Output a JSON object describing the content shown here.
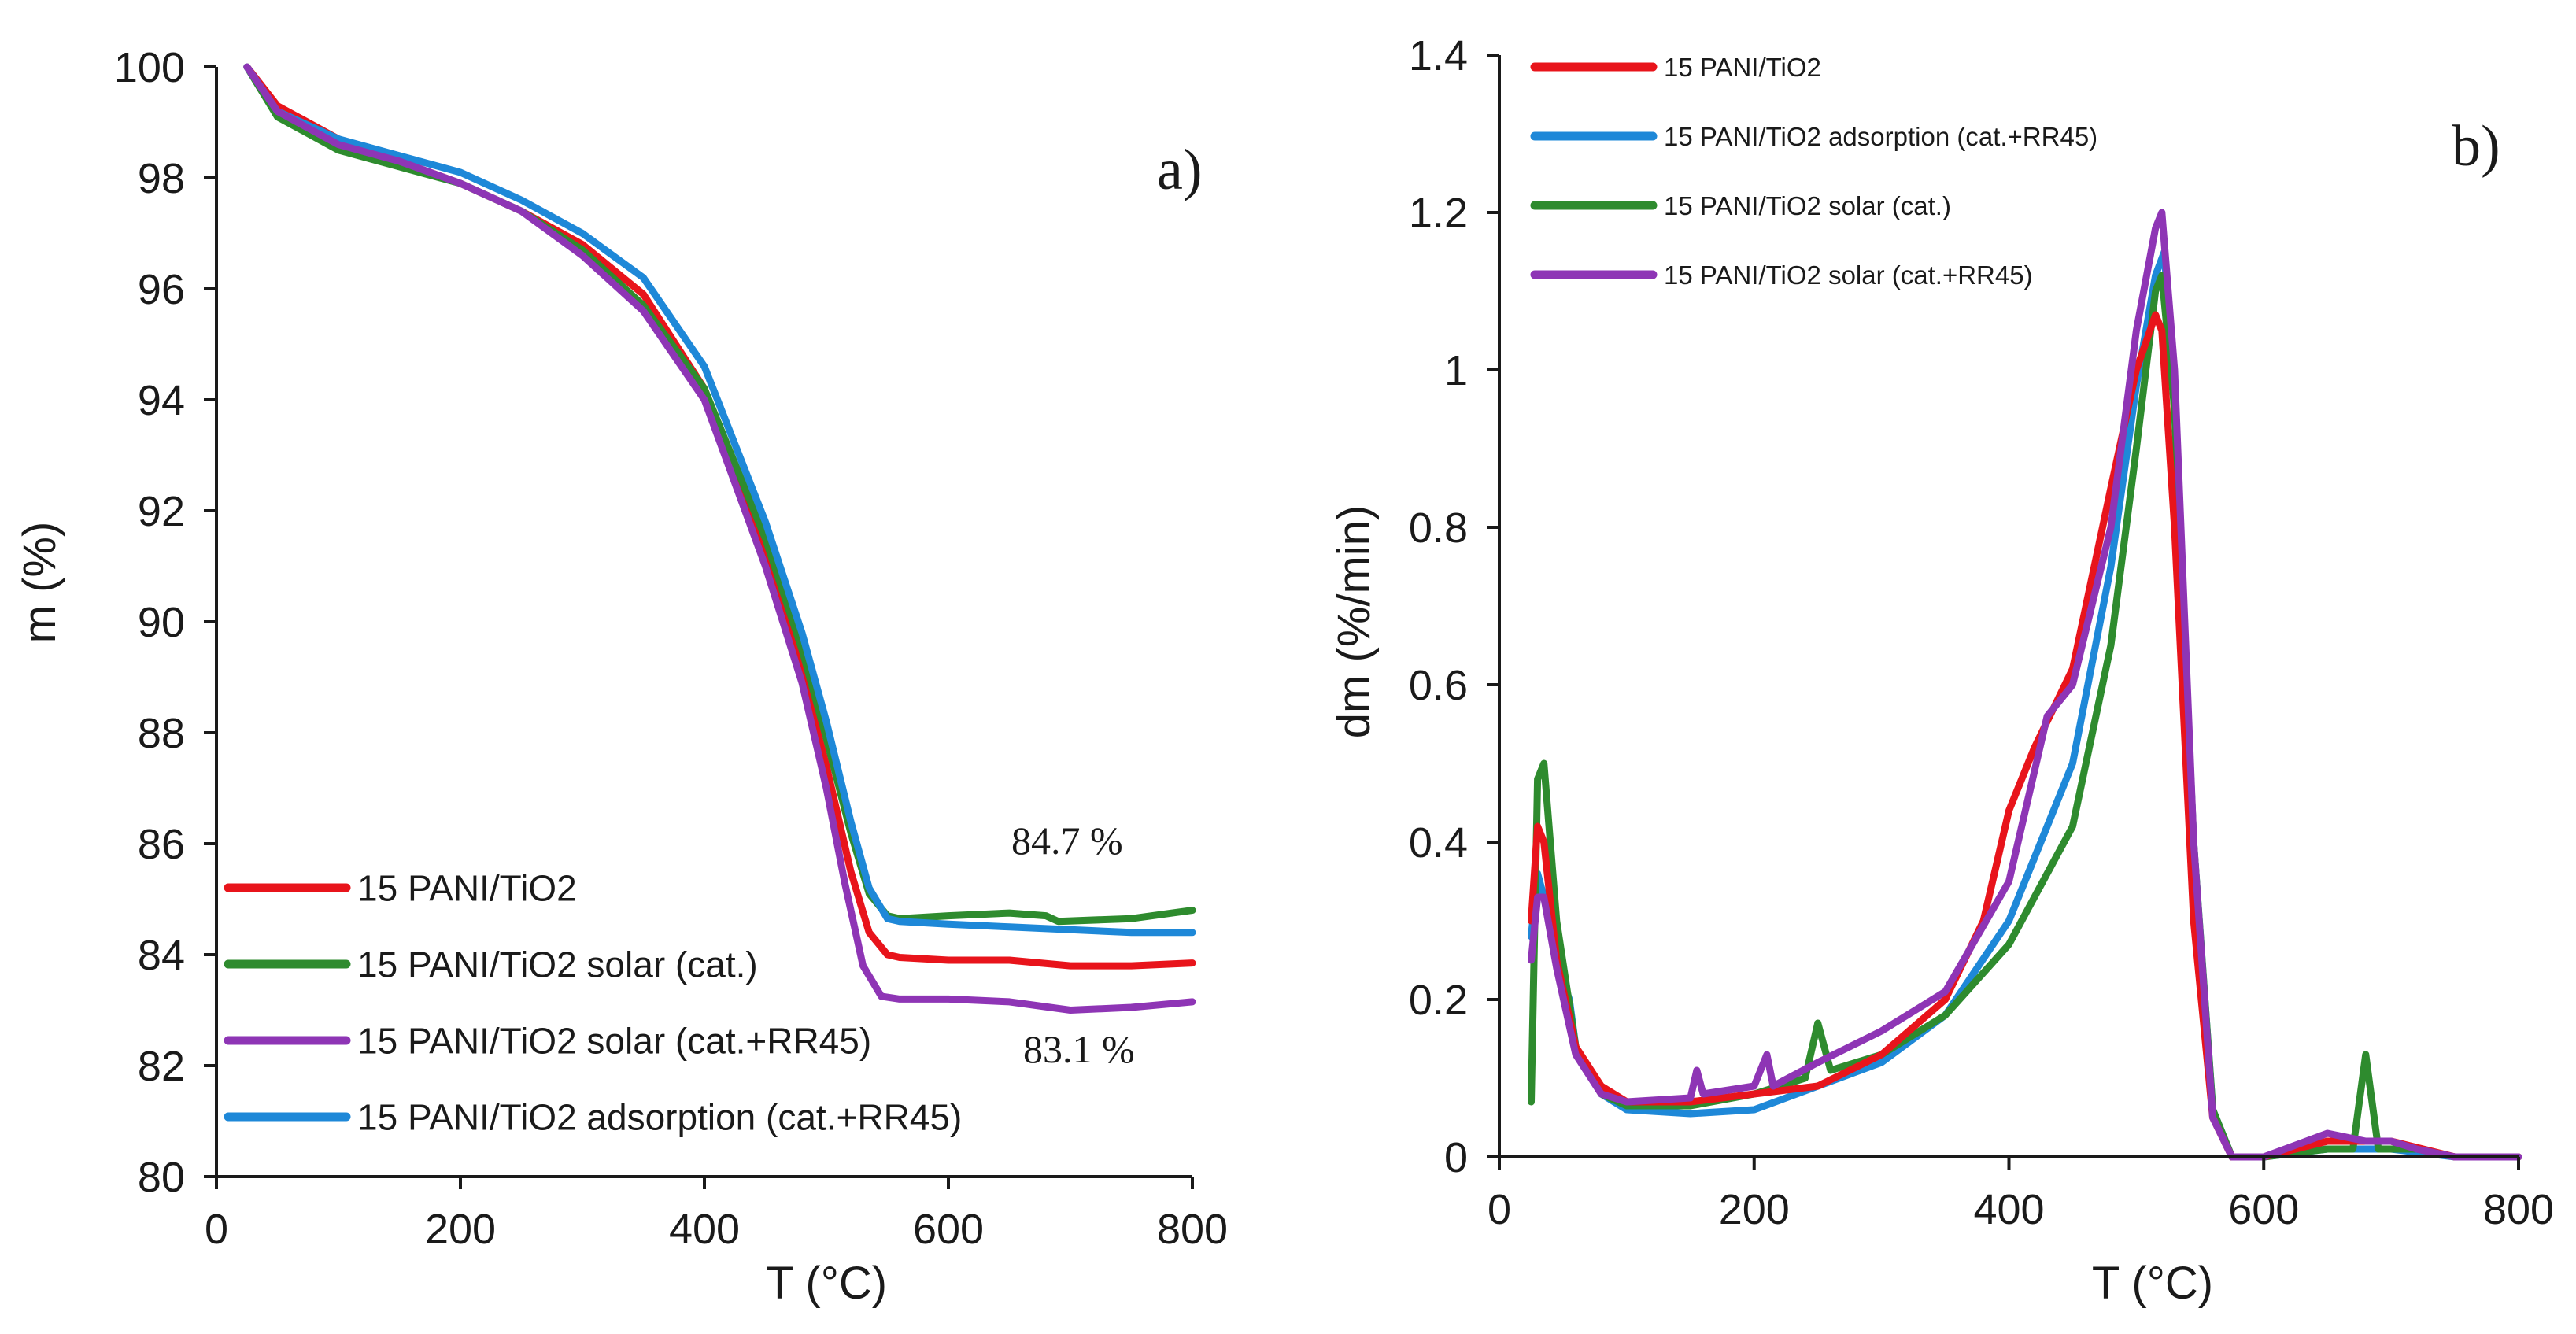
{
  "colors": {
    "red": "#e8141b",
    "green": "#2e8b2e",
    "purple": "#8e35b5",
    "blue": "#1e88d8",
    "axis": "#1a1a1a"
  },
  "chart_data": [
    {
      "type": "line",
      "panel_label": "a)",
      "xlabel": "T (°C)",
      "ylabel": "m (%)",
      "xlim": [
        0,
        800
      ],
      "ylim": [
        80,
        100
      ],
      "xticks": [
        "0",
        "200",
        "400",
        "600",
        "800"
      ],
      "yticks": [
        "80",
        "82",
        "84",
        "86",
        "88",
        "90",
        "92",
        "94",
        "96",
        "98",
        "100"
      ],
      "grid": false,
      "legend_position": "bottom-left",
      "annotations": [
        {
          "text": "84.7 %",
          "x": 680,
          "y": 85.9
        },
        {
          "text": "83.1 %",
          "x": 680,
          "y": 82.2
        }
      ],
      "series": [
        {
          "name": "15 PANI/TiO2",
          "color": "red",
          "x": [
            25,
            50,
            100,
            150,
            200,
            250,
            300,
            350,
            400,
            450,
            480,
            500,
            520,
            535,
            550,
            560,
            600,
            650,
            700,
            750,
            800
          ],
          "y": [
            100,
            99.3,
            98.7,
            98.3,
            97.9,
            97.4,
            96.8,
            95.9,
            94.2,
            91.2,
            89.1,
            87.4,
            85.5,
            84.4,
            84.0,
            83.95,
            83.9,
            83.9,
            83.8,
            83.8,
            83.85
          ]
        },
        {
          "name": "15 PANI/TiO2 solar (cat.)",
          "color": "green",
          "x": [
            25,
            50,
            100,
            150,
            200,
            250,
            300,
            350,
            400,
            450,
            480,
            500,
            520,
            535,
            550,
            560,
            600,
            650,
            680,
            690,
            750,
            800
          ],
          "y": [
            100,
            99.1,
            98.5,
            98.2,
            97.9,
            97.4,
            96.7,
            95.7,
            94.2,
            91.5,
            89.5,
            87.9,
            86.2,
            85.1,
            84.7,
            84.65,
            84.7,
            84.75,
            84.7,
            84.6,
            84.65,
            84.8
          ]
        },
        {
          "name": "15 PANI/TiO2 solar (cat.+RR45)",
          "color": "purple",
          "x": [
            25,
            50,
            100,
            150,
            200,
            250,
            300,
            350,
            400,
            450,
            480,
            500,
            515,
            530,
            545,
            560,
            600,
            650,
            700,
            750,
            800
          ],
          "y": [
            100,
            99.2,
            98.6,
            98.3,
            97.9,
            97.4,
            96.6,
            95.6,
            94.0,
            91.0,
            88.9,
            87.0,
            85.3,
            83.8,
            83.25,
            83.2,
            83.2,
            83.15,
            83.0,
            83.05,
            83.15
          ]
        },
        {
          "name": "15 PANI/TiO2 adsorption (cat.+RR45)",
          "color": "blue",
          "x": [
            25,
            50,
            100,
            150,
            200,
            250,
            300,
            350,
            400,
            450,
            480,
            500,
            520,
            535,
            550,
            560,
            600,
            650,
            700,
            750,
            800
          ],
          "y": [
            100,
            99.2,
            98.7,
            98.4,
            98.1,
            97.6,
            97.0,
            96.2,
            94.6,
            91.8,
            89.8,
            88.2,
            86.4,
            85.2,
            84.65,
            84.6,
            84.55,
            84.5,
            84.45,
            84.4,
            84.4
          ]
        }
      ]
    },
    {
      "type": "line",
      "panel_label": "b)",
      "xlabel": "T (°C)",
      "ylabel": "dm (%/min)",
      "xlim": [
        0,
        800
      ],
      "ylim": [
        0,
        1.4
      ],
      "xticks": [
        "0",
        "200",
        "400",
        "600",
        "800"
      ],
      "yticks": [
        "0",
        "0.2",
        "0.4",
        "0.6",
        "0.8",
        "1",
        "1.2",
        "1.4"
      ],
      "grid": false,
      "legend_position": "top-left",
      "series": [
        {
          "name": "15 PANI/TiO2",
          "color": "red",
          "x": [
            25,
            30,
            35,
            45,
            60,
            80,
            100,
            150,
            200,
            250,
            300,
            350,
            380,
            400,
            420,
            450,
            480,
            500,
            515,
            520,
            530,
            545,
            560,
            575,
            600,
            650,
            700,
            750,
            800
          ],
          "y": [
            0.3,
            0.42,
            0.4,
            0.25,
            0.14,
            0.09,
            0.07,
            0.07,
            0.08,
            0.09,
            0.13,
            0.2,
            0.3,
            0.44,
            0.52,
            0.62,
            0.85,
            1.0,
            1.07,
            1.05,
            0.8,
            0.3,
            0.05,
            0.0,
            0.0,
            0.02,
            0.02,
            0.0,
            0.0
          ]
        },
        {
          "name": "15 PANI/TiO2 adsorption (cat.+RR45)",
          "color": "blue",
          "x": [
            25,
            30,
            35,
            45,
            55,
            60,
            80,
            100,
            150,
            200,
            250,
            300,
            350,
            400,
            420,
            450,
            480,
            500,
            515,
            522,
            530,
            545,
            560,
            575,
            600,
            650,
            700,
            750,
            800
          ],
          "y": [
            0.28,
            0.36,
            0.33,
            0.25,
            0.2,
            0.14,
            0.08,
            0.06,
            0.055,
            0.06,
            0.09,
            0.12,
            0.18,
            0.3,
            0.38,
            0.5,
            0.75,
            0.98,
            1.12,
            1.15,
            0.95,
            0.4,
            0.06,
            0.0,
            0.0,
            0.01,
            0.01,
            0.0,
            0.0
          ]
        },
        {
          "name": "15 PANI/TiO2 solar (cat.)",
          "color": "green",
          "x": [
            25,
            30,
            35,
            45,
            60,
            80,
            100,
            150,
            200,
            240,
            250,
            260,
            300,
            350,
            400,
            450,
            480,
            500,
            515,
            520,
            530,
            545,
            560,
            575,
            600,
            650,
            670,
            680,
            690,
            720,
            750,
            800
          ],
          "y": [
            0.07,
            0.48,
            0.5,
            0.3,
            0.14,
            0.08,
            0.065,
            0.065,
            0.08,
            0.1,
            0.17,
            0.11,
            0.13,
            0.18,
            0.27,
            0.42,
            0.65,
            0.9,
            1.1,
            1.12,
            0.95,
            0.4,
            0.06,
            0.0,
            0.0,
            0.01,
            0.01,
            0.13,
            0.01,
            0.01,
            0.0,
            0.0
          ]
        },
        {
          "name": "15 PANI/TiO2 solar (cat.+RR45)",
          "color": "purple",
          "x": [
            25,
            30,
            35,
            45,
            60,
            80,
            100,
            150,
            155,
            160,
            200,
            210,
            215,
            250,
            300,
            350,
            400,
            430,
            450,
            480,
            500,
            515,
            520,
            530,
            545,
            560,
            575,
            600,
            650,
            680,
            700,
            720,
            750,
            800
          ],
          "y": [
            0.25,
            0.33,
            0.33,
            0.24,
            0.13,
            0.08,
            0.07,
            0.075,
            0.11,
            0.08,
            0.09,
            0.13,
            0.09,
            0.12,
            0.16,
            0.21,
            0.35,
            0.56,
            0.6,
            0.8,
            1.05,
            1.18,
            1.2,
            1.0,
            0.4,
            0.05,
            0.0,
            0.0,
            0.03,
            0.02,
            0.02,
            0.01,
            0.0,
            0.0
          ]
        }
      ]
    }
  ],
  "legend_a": [
    {
      "label": "15 PANI/TiO2",
      "color": "red"
    },
    {
      "label": "15 PANI/TiO2 solar (cat.)",
      "color": "green"
    },
    {
      "label": "15 PANI/TiO2 solar (cat.+RR45)",
      "color": "purple"
    },
    {
      "label": "15 PANI/TiO2 adsorption (cat.+RR45)",
      "color": "blue"
    }
  ],
  "legend_b": [
    {
      "label": "15 PANI/TiO2",
      "color": "red"
    },
    {
      "label": "15 PANI/TiO2 adsorption (cat.+RR45)",
      "color": "blue"
    },
    {
      "label": " 15 PANI/TiO2 solar (cat.)",
      "color": "green"
    },
    {
      "label": "15 PANI/TiO2 solar (cat.+RR45)",
      "color": "purple"
    }
  ]
}
